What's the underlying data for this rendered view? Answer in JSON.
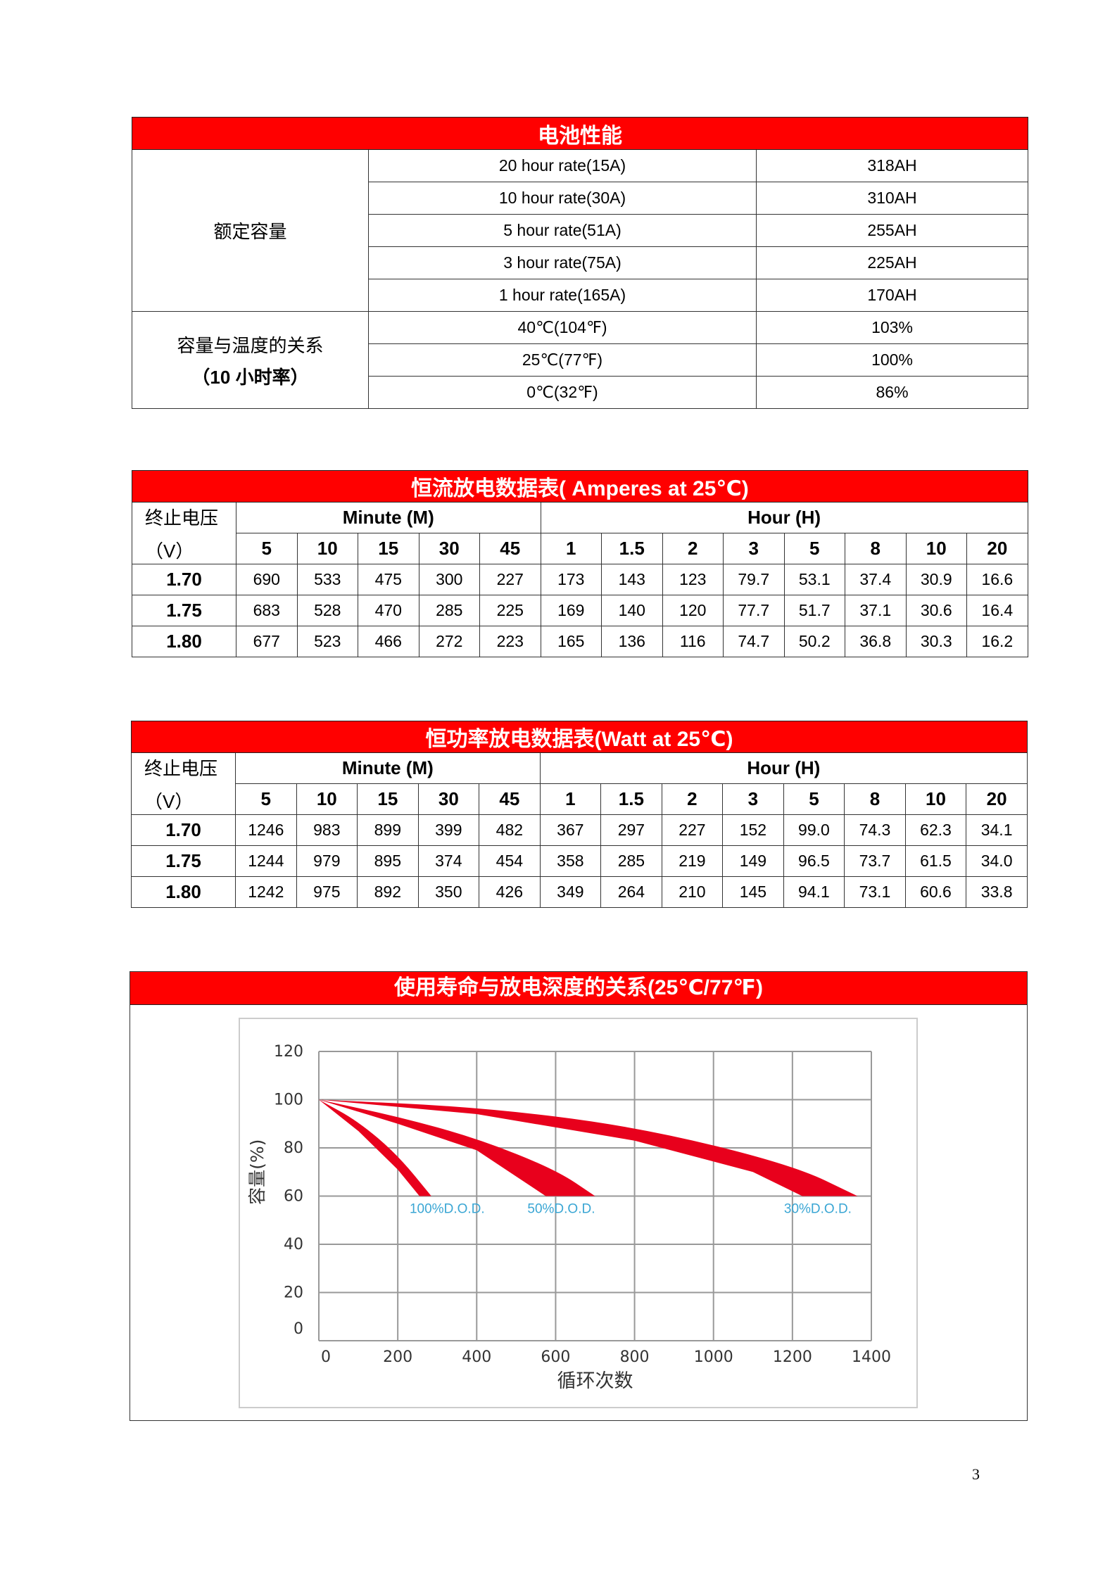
{
  "perf_table": {
    "title": "电池性能",
    "rated_capacity_label": "额定容量",
    "rated_capacity": [
      {
        "rate": "20 hour rate(15A)",
        "value": "318AH"
      },
      {
        "rate": "10 hour rate(30A)",
        "value": "310AH"
      },
      {
        "rate": "5 hour rate(51A)",
        "value": "255AH"
      },
      {
        "rate": "3 hour rate(75A)",
        "value": "225AH"
      },
      {
        "rate": "1 hour rate(165A)",
        "value": "170AH"
      }
    ],
    "temp_label_line1": "容量与温度的关系",
    "temp_label_line2": "（10 小时率）",
    "temperature": [
      {
        "temp": "40℃(104℉)",
        "value": "103%"
      },
      {
        "temp": "25℃(77℉)",
        "value": "100%"
      },
      {
        "temp": "0℃(32℉)",
        "value": "86%"
      }
    ]
  },
  "current_table": {
    "title": "恒流放电数据表( Amperes at 25℃)",
    "voltage_label_line1": "终止电压",
    "voltage_label_line2": "（V）",
    "minute_label": "Minute (M)",
    "hour_label": "Hour (H)",
    "columns": [
      "5",
      "10",
      "15",
      "30",
      "45",
      "1",
      "1.5",
      "2",
      "3",
      "5",
      "8",
      "10",
      "20"
    ],
    "rows": [
      {
        "v": "1.70",
        "values": [
          "690",
          "533",
          "475",
          "300",
          "227",
          "173",
          "143",
          "123",
          "79.7",
          "53.1",
          "37.4",
          "30.9",
          "16.6"
        ]
      },
      {
        "v": "1.75",
        "values": [
          "683",
          "528",
          "470",
          "285",
          "225",
          "169",
          "140",
          "120",
          "77.7",
          "51.7",
          "37.1",
          "30.6",
          "16.4"
        ]
      },
      {
        "v": "1.80",
        "values": [
          "677",
          "523",
          "466",
          "272",
          "223",
          "165",
          "136",
          "116",
          "74.7",
          "50.2",
          "36.8",
          "30.3",
          "16.2"
        ]
      }
    ]
  },
  "power_table": {
    "title": "恒功率放电数据表(Watt at 25℃)",
    "voltage_label_line1": "终止电压",
    "voltage_label_line2": "（V）",
    "minute_label": "Minute (M)",
    "hour_label": "Hour (H)",
    "columns": [
      "5",
      "10",
      "15",
      "30",
      "45",
      "1",
      "1.5",
      "2",
      "3",
      "5",
      "8",
      "10",
      "20"
    ],
    "rows": [
      {
        "v": "1.70",
        "values": [
          "1246",
          "983",
          "899",
          "399",
          "482",
          "367",
          "297",
          "227",
          "152",
          "99.0",
          "74.3",
          "62.3",
          "34.1"
        ]
      },
      {
        "v": "1.75",
        "values": [
          "1244",
          "979",
          "895",
          "374",
          "454",
          "358",
          "285",
          "219",
          "149",
          "96.5",
          "73.7",
          "61.5",
          "34.0"
        ]
      },
      {
        "v": "1.80",
        "values": [
          "1242",
          "975",
          "892",
          "350",
          "426",
          "349",
          "264",
          "210",
          "145",
          "94.1",
          "73.1",
          "60.6",
          "33.8"
        ]
      }
    ]
  },
  "cycle_section": {
    "title": "使用寿命与放电深度的关系(25℃/77℉)"
  },
  "chart_data": {
    "type": "area",
    "xlabel": "循环次数",
    "ylabel": "容量(%)",
    "xlim": [
      0,
      1400
    ],
    "ylim": [
      0,
      120
    ],
    "xticks": [
      "0",
      "200",
      "400",
      "600",
      "800",
      "1000",
      "1200",
      "1400"
    ],
    "yticks": [
      "0",
      "20",
      "40",
      "60",
      "80",
      "100",
      "120"
    ],
    "grid": true,
    "band_color": "#e8001c",
    "label_color": "#3aa6d4",
    "series": [
      {
        "name": "100%D.O.D.",
        "outer": [
          [
            0,
            100
          ],
          [
            100,
            91
          ],
          [
            200,
            77
          ],
          [
            285,
            60
          ]
        ],
        "inner": [
          [
            0,
            100
          ],
          [
            100,
            87
          ],
          [
            200,
            71
          ],
          [
            255,
            60
          ]
        ]
      },
      {
        "name": "50%D.O.D.",
        "outer": [
          [
            0,
            100
          ],
          [
            200,
            93
          ],
          [
            400,
            84
          ],
          [
            600,
            71
          ],
          [
            700,
            60
          ]
        ],
        "inner": [
          [
            0,
            100
          ],
          [
            200,
            90
          ],
          [
            400,
            79
          ],
          [
            575,
            60
          ]
        ]
      },
      {
        "name": "30%D.O.D.",
        "outer": [
          [
            0,
            100
          ],
          [
            400,
            97
          ],
          [
            800,
            89
          ],
          [
            1200,
            73
          ],
          [
            1365,
            60
          ]
        ],
        "inner": [
          [
            0,
            100
          ],
          [
            400,
            94
          ],
          [
            800,
            83
          ],
          [
            1100,
            70
          ],
          [
            1225,
            60
          ]
        ]
      }
    ]
  },
  "page_number": "3"
}
